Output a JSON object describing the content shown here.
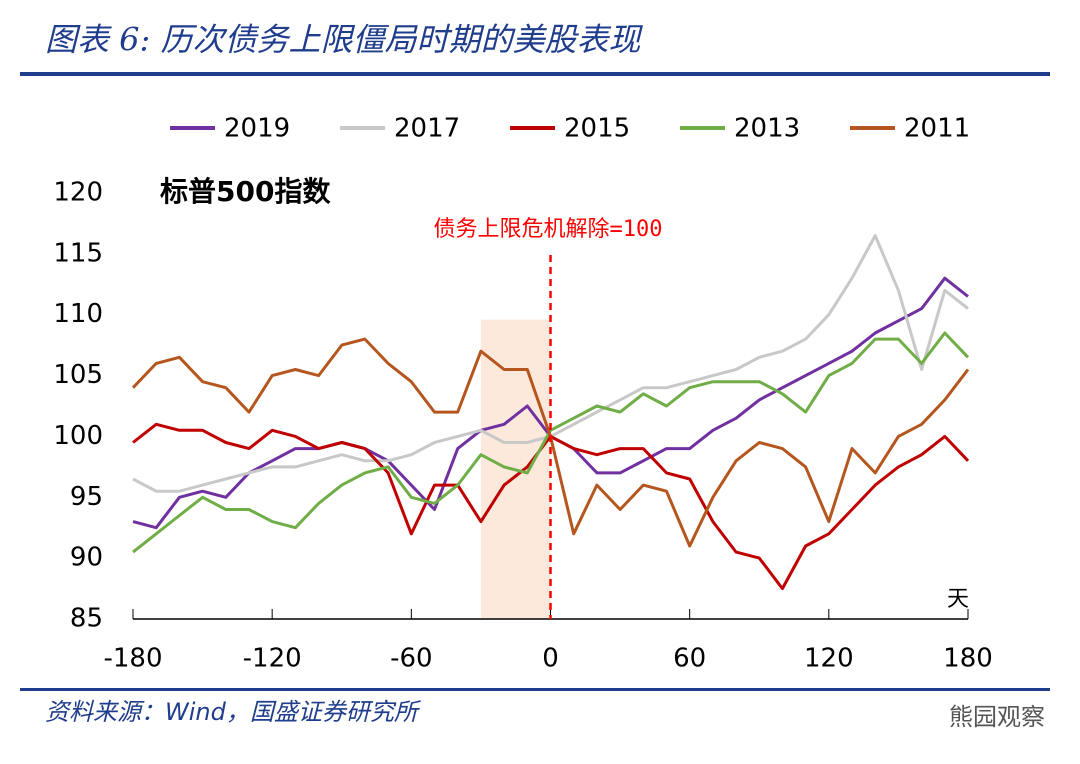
{
  "header": {
    "title": "图表 6: 历次债务上限僵局时期的美股表现"
  },
  "chart_data": {
    "type": "line",
    "ylabel": "标普500指数",
    "xlabel": "天",
    "annotation": "债务上限危机解除=100",
    "reference_x": 0,
    "shaded_region": {
      "xlim": [
        -30,
        0
      ],
      "ylim": [
        85,
        109.6
      ],
      "color": "#fbe5d6"
    },
    "x": [
      -180,
      -170,
      -160,
      -150,
      -140,
      -130,
      -120,
      -110,
      -100,
      -90,
      -80,
      -70,
      -60,
      -50,
      -40,
      -30,
      -20,
      -10,
      0,
      10,
      20,
      30,
      40,
      50,
      60,
      70,
      80,
      90,
      100,
      110,
      120,
      130,
      140,
      150,
      160,
      170,
      180
    ],
    "series": [
      {
        "name": "2019",
        "color": "#7030a0",
        "values": [
          93,
          92.5,
          95,
          95.5,
          95,
          97,
          98,
          99,
          99,
          99.5,
          99,
          98,
          96,
          94,
          99,
          100.5,
          101,
          102.5,
          100,
          99,
          97,
          97,
          98,
          99,
          99,
          100.5,
          101.5,
          103,
          104,
          105,
          106,
          107,
          108.5,
          109.5,
          110.5,
          113,
          111.5
        ]
      },
      {
        "name": "2017",
        "color": "#c8c8c8",
        "values": [
          96.5,
          95.5,
          95.5,
          96,
          96.5,
          97,
          97.5,
          97.5,
          98,
          98.5,
          98,
          98,
          98.5,
          99.5,
          100,
          100.5,
          99.5,
          99.5,
          100,
          101,
          102,
          103,
          104,
          104,
          104.5,
          105,
          105.5,
          106.5,
          107,
          108,
          110,
          113,
          116.5,
          112,
          105.5,
          112,
          110.5
        ]
      },
      {
        "name": "2015",
        "color": "#c00000",
        "values": [
          99.5,
          101,
          100.5,
          100.5,
          99.5,
          99,
          100.5,
          100,
          99,
          99.5,
          99,
          97,
          92,
          96,
          96,
          93,
          96,
          97.5,
          100,
          99,
          98.5,
          99,
          99,
          97,
          96.5,
          93,
          90.5,
          90,
          87.5,
          91,
          92,
          94,
          96,
          97.5,
          98.5,
          100,
          98
        ]
      },
      {
        "name": "2013",
        "color": "#70ad47",
        "values": [
          90.5,
          92,
          93.5,
          95,
          94,
          94,
          93,
          92.5,
          94.5,
          96,
          97,
          97.5,
          95,
          94.5,
          96,
          98.5,
          97.5,
          97,
          100.5,
          101.5,
          102.5,
          102,
          103.5,
          102.5,
          104,
          104.5,
          104.5,
          104.5,
          103.5,
          102,
          105,
          106,
          108,
          108,
          106,
          108.5,
          106.5
        ]
      },
      {
        "name": "2011",
        "color": "#b5561f",
        "values": [
          104,
          106,
          106.5,
          104.5,
          104,
          102,
          105,
          105.5,
          105,
          107.5,
          108,
          106,
          104.5,
          102,
          102,
          107,
          105.5,
          105.5,
          100,
          92,
          96,
          94,
          96,
          95.5,
          91,
          95,
          98,
          99.5,
          99,
          97.5,
          93,
          99,
          97,
          100,
          101,
          103,
          105.5
        ]
      }
    ],
    "xlim": [
      -180,
      180
    ],
    "xticks": [
      -180,
      -120,
      -60,
      0,
      60,
      120,
      180
    ],
    "ylim": [
      85,
      120
    ],
    "yticks": [
      85,
      90,
      95,
      100,
      105,
      110,
      115,
      120
    ],
    "grid": false
  },
  "footer": {
    "source": "资料来源：Wind，国盛证券研究所",
    "watermark": "熊园观察"
  }
}
